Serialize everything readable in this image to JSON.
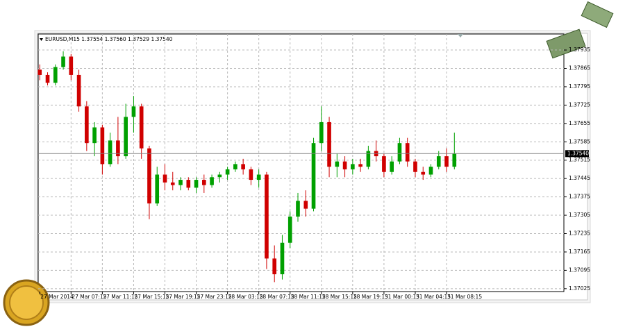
{
  "chart_data": {
    "type": "candlestick",
    "title": "EURUSD,M15  1.37554 1.37560 1.37529 1.37540",
    "up_color": "#00a000",
    "down_color": "#d00000",
    "grid": true,
    "ylim": [
      1.37014,
      1.37996
    ],
    "yticks": [
      1.37025,
      1.37095,
      1.37165,
      1.37235,
      1.37305,
      1.37375,
      1.37445,
      1.37515,
      1.37585,
      1.37655,
      1.37725,
      1.37795,
      1.37865,
      1.37935
    ],
    "xlim": [
      -0.2,
      67
    ],
    "xticks": [
      {
        "value": 0,
        "label": "27 Mar 2014"
      },
      {
        "value": 4,
        "label": "27 Mar 07:15"
      },
      {
        "value": 8,
        "label": "27 Mar 11:15"
      },
      {
        "value": 12,
        "label": "27 Mar 15:15"
      },
      {
        "value": 16,
        "label": "27 Mar 19:15"
      },
      {
        "value": 20,
        "label": "27 Mar 23:15"
      },
      {
        "value": 24,
        "label": "28 Mar 03:15"
      },
      {
        "value": 28,
        "label": "28 Mar 07:15"
      },
      {
        "value": 32,
        "label": "28 Mar 11:15"
      },
      {
        "value": 36,
        "label": "28 Mar 15:15"
      },
      {
        "value": 40,
        "label": "28 Mar 19:15"
      },
      {
        "value": 44,
        "label": "31 Mar 00:15"
      },
      {
        "value": 48,
        "label": "31 Mar 04:15"
      },
      {
        "value": 52,
        "label": "31 Mar 08:15"
      }
    ],
    "current_price": {
      "value": 1.3754,
      "label": "1.37540"
    },
    "open": [
      1.3786,
      1.3784,
      1.3781,
      1.3787,
      1.3791,
      1.3784,
      1.3772,
      1.3758,
      1.3764,
      1.375,
      1.3759,
      1.3753,
      1.3768,
      1.3772,
      1.3756,
      1.3735,
      1.3746,
      1.3743,
      1.3742,
      1.3744,
      1.3741,
      1.3744,
      1.3742,
      1.3745,
      1.3746,
      1.3748,
      1.375,
      1.3748,
      1.3744,
      1.3746,
      1.3714,
      1.3708,
      1.372,
      1.373,
      1.3736,
      1.3733,
      1.3758,
      1.3766,
      1.3749,
      1.3751,
      1.3748,
      1.375,
      1.3749,
      1.3755,
      1.3753,
      1.3747,
      1.3751,
      1.3758,
      1.3751,
      1.3747,
      1.3746,
      1.3749,
      1.3753,
      1.3749
    ],
    "high": [
      1.3788,
      1.3785,
      1.3788,
      1.3793,
      1.3792,
      1.3786,
      1.3774,
      1.3766,
      1.3765,
      1.3762,
      1.3768,
      1.3773,
      1.3776,
      1.3773,
      1.3757,
      1.3749,
      1.375,
      1.3747,
      1.3745,
      1.3745,
      1.3745,
      1.3746,
      1.3746,
      1.3747,
      1.3749,
      1.3751,
      1.3752,
      1.3749,
      1.3748,
      1.3747,
      1.3719,
      1.3723,
      1.3732,
      1.3739,
      1.374,
      1.376,
      1.3772,
      1.3768,
      1.3754,
      1.3753,
      1.3752,
      1.3752,
      1.3757,
      1.3759,
      1.3754,
      1.3753,
      1.376,
      1.376,
      1.3752,
      1.3749,
      1.375,
      1.3755,
      1.3756,
      1.3762
    ],
    "low": [
      1.3782,
      1.378,
      1.378,
      1.3786,
      1.3782,
      1.377,
      1.3755,
      1.3753,
      1.3746,
      1.3749,
      1.375,
      1.3752,
      1.3762,
      1.3752,
      1.3729,
      1.3734,
      1.374,
      1.374,
      1.374,
      1.374,
      1.3739,
      1.3739,
      1.3741,
      1.3743,
      1.3744,
      1.3747,
      1.3746,
      1.3742,
      1.3741,
      1.371,
      1.3705,
      1.3706,
      1.3718,
      1.3728,
      1.373,
      1.3732,
      1.3755,
      1.3745,
      1.3745,
      1.3745,
      1.3746,
      1.3747,
      1.3748,
      1.3751,
      1.3745,
      1.3746,
      1.375,
      1.3749,
      1.3745,
      1.3744,
      1.3745,
      1.3748,
      1.3747,
      1.3748
    ],
    "close": [
      1.3784,
      1.3781,
      1.3787,
      1.3791,
      1.3784,
      1.3772,
      1.3758,
      1.3764,
      1.375,
      1.3759,
      1.3753,
      1.3768,
      1.3772,
      1.3756,
      1.3735,
      1.3746,
      1.3743,
      1.3742,
      1.3744,
      1.3741,
      1.3744,
      1.3742,
      1.3745,
      1.3746,
      1.3748,
      1.375,
      1.3748,
      1.3744,
      1.3746,
      1.3714,
      1.3708,
      1.372,
      1.373,
      1.3736,
      1.3733,
      1.3758,
      1.3766,
      1.3749,
      1.3751,
      1.3748,
      1.375,
      1.3749,
      1.3755,
      1.3753,
      1.3747,
      1.3751,
      1.3758,
      1.3751,
      1.3747,
      1.3746,
      1.3749,
      1.3753,
      1.3749,
      1.3754
    ]
  }
}
